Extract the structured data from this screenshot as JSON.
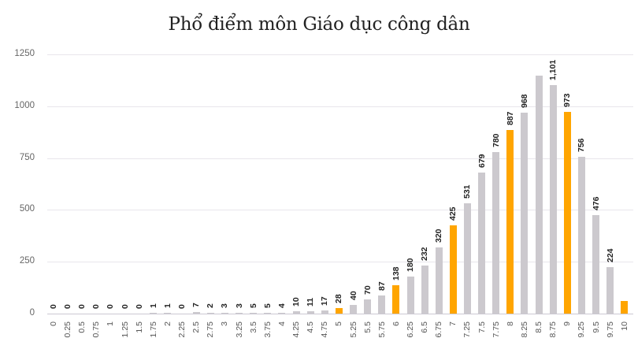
{
  "chart_data": {
    "type": "bar",
    "title": "Phổ điểm môn Giáo dục công dân",
    "xlabel": "",
    "ylabel": "",
    "ylim": [
      0,
      1250
    ],
    "yticks": [
      0,
      250,
      500,
      750,
      1000,
      1250
    ],
    "grid": true,
    "legend": null,
    "categories": [
      "0",
      "0.25",
      "0.5",
      "0.75",
      "1",
      "1.25",
      "1.5",
      "1.75",
      "2",
      "2.25",
      "2.5",
      "2.75",
      "3",
      "3.25",
      "3.5",
      "3.75",
      "4",
      "4.25",
      "4.5",
      "4.75",
      "5",
      "5.25",
      "5.5",
      "5.75",
      "6",
      "6.25",
      "6.5",
      "6.75",
      "7",
      "7.25",
      "7.5",
      "7.75",
      "8",
      "8.25",
      "8.5",
      "8.75",
      "9",
      "9.25",
      "9.5",
      "9.75",
      "10"
    ],
    "values": [
      0,
      0,
      0,
      0,
      0,
      0,
      0,
      1,
      1,
      0,
      7,
      2,
      3,
      3,
      5,
      5,
      4,
      10,
      11,
      17,
      28,
      40,
      70,
      87,
      138,
      180,
      232,
      320,
      425,
      531,
      679,
      780,
      887,
      968,
      1147,
      1101,
      973,
      756,
      476,
      224,
      62
    ],
    "data_labels": [
      "0",
      "0",
      "0",
      "0",
      "0",
      "0",
      "0",
      "1",
      "1",
      "0",
      "7",
      "2",
      "3",
      "3",
      "5",
      "5",
      "4",
      "10",
      "11",
      "17",
      "28",
      "40",
      "70",
      "87",
      "138",
      "180",
      "232",
      "320",
      "425",
      "531",
      "679",
      "780",
      "887",
      "968",
      "",
      "1,101",
      "973",
      "756",
      "476",
      "224",
      ""
    ],
    "highlighted_categories": [
      "5",
      "6",
      "7",
      "8",
      "9",
      "10"
    ],
    "colors": {
      "default": "#ccc9ce",
      "highlight": "#ffa500"
    }
  }
}
